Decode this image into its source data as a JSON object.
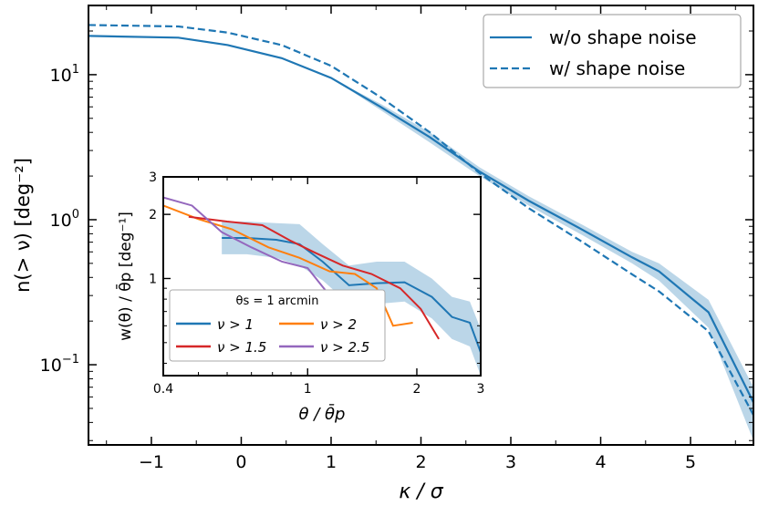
{
  "chart_data": [
    {
      "type": "line",
      "panel": "main",
      "xlabel": "κ / σ",
      "ylabel": "n(> ν) [deg⁻²]",
      "xlim": [
        -1.7,
        5.7
      ],
      "ylim": [
        0.028,
        30
      ],
      "yscale": "log",
      "xticks": [
        -1,
        0,
        1,
        2,
        3,
        4,
        5
      ],
      "xtick_labels": [
        "−1",
        "0",
        "1",
        "2",
        "3",
        "4",
        "5"
      ],
      "yticks": [
        {
          "value": 0.1,
          "base": "10",
          "exp": "−1"
        },
        {
          "value": 1,
          "base": "10",
          "exp": "0"
        },
        {
          "value": 10,
          "base": "10",
          "exp": "1"
        }
      ],
      "legend": {
        "position": "top-right",
        "entries": [
          "w/o shape noise",
          "w/ shape noise"
        ]
      },
      "series": [
        {
          "name": "w/o shape noise",
          "style": "solid",
          "color": "#1f77b4",
          "x": [
            -1.7,
            -0.7,
            -0.15,
            0.45,
            1.0,
            1.55,
            2.1,
            2.65,
            3.2,
            3.8,
            4.35,
            4.65,
            5.2,
            5.7
          ],
          "y": [
            18.5,
            18.0,
            16.0,
            13.0,
            9.5,
            6.0,
            3.7,
            2.15,
            1.35,
            0.85,
            0.55,
            0.44,
            0.23,
            0.055
          ],
          "band_lower": [
            18.5,
            18.0,
            16.0,
            13.0,
            9.5,
            5.7,
            3.4,
            2.0,
            1.25,
            0.78,
            0.5,
            0.38,
            0.18,
            0.03
          ],
          "band_upper": [
            18.5,
            18.0,
            16.0,
            13.0,
            9.5,
            6.3,
            4.0,
            2.3,
            1.45,
            0.92,
            0.6,
            0.5,
            0.28,
            0.07
          ]
        },
        {
          "name": "w/ shape noise",
          "style": "dashed",
          "color": "#1f77b4",
          "x": [
            -1.7,
            -0.7,
            -0.15,
            0.45,
            1.0,
            1.55,
            2.1,
            2.65,
            3.2,
            3.8,
            4.35,
            4.65,
            5.2,
            5.7
          ],
          "y": [
            22.0,
            21.5,
            19.5,
            16.0,
            11.5,
            7.0,
            4.0,
            2.1,
            1.2,
            0.7,
            0.42,
            0.32,
            0.17,
            0.045
          ]
        }
      ]
    },
    {
      "type": "line",
      "panel": "inset",
      "xlabel": "θ / θ̄p",
      "ylabel": "w(θ) / θ̄p [deg⁻¹]",
      "xscale": "log",
      "yscale": "log",
      "xlim": [
        0.4,
        3.0
      ],
      "ylim": [
        0.35,
        3.0
      ],
      "xticks": [
        0.4,
        1,
        2,
        3
      ],
      "xtick_labels": [
        "0.4",
        "1",
        "2",
        "3"
      ],
      "yticks": [
        1,
        2,
        3
      ],
      "ytick_labels": [
        "1",
        "2",
        "3"
      ],
      "legend": {
        "position": "bottom-left",
        "title": "θs = 1 arcmin",
        "entries": [
          "ν > 1",
          "ν > 2",
          "ν > 1.5",
          "ν > 2.5"
        ]
      },
      "series": [
        {
          "name": "ν > 1",
          "color": "#1f77b4",
          "x": [
            0.58,
            0.68,
            0.82,
            0.95,
            1.1,
            1.3,
            1.55,
            1.85,
            2.2,
            2.5,
            2.8,
            3.0
          ],
          "y": [
            1.55,
            1.55,
            1.52,
            1.45,
            1.2,
            0.93,
            0.95,
            0.96,
            0.82,
            0.66,
            0.62,
            0.45
          ],
          "band_lower": [
            1.3,
            1.3,
            1.25,
            1.15,
            0.98,
            0.76,
            0.76,
            0.78,
            0.65,
            0.52,
            0.48,
            0.35
          ],
          "band_upper": [
            1.85,
            1.85,
            1.82,
            1.8,
            1.45,
            1.15,
            1.2,
            1.2,
            1.0,
            0.82,
            0.78,
            0.58
          ]
        },
        {
          "name": "ν > 2",
          "color": "#ff7f0e",
          "x": [
            0.4,
            0.5,
            0.62,
            0.78,
            0.95,
            1.15,
            1.35,
            1.55,
            1.72,
            1.95
          ],
          "y": [
            2.2,
            1.9,
            1.7,
            1.4,
            1.25,
            1.08,
            1.05,
            0.9,
            0.6,
            0.62
          ]
        },
        {
          "name": "ν > 1.5",
          "color": "#d62728",
          "x": [
            0.47,
            0.6,
            0.75,
            0.9,
            1.05,
            1.25,
            1.5,
            1.8,
            2.05,
            2.3
          ],
          "y": [
            1.95,
            1.85,
            1.78,
            1.5,
            1.32,
            1.15,
            1.05,
            0.9,
            0.72,
            0.52
          ]
        },
        {
          "name": "ν > 2.5",
          "color": "#9467bd",
          "x": [
            0.4,
            0.48,
            0.58,
            0.7,
            0.85,
            1.0,
            1.12,
            1.25,
            1.4,
            1.58
          ],
          "y": [
            2.4,
            2.2,
            1.65,
            1.4,
            1.2,
            1.12,
            0.88,
            0.68,
            0.6,
            0.6
          ]
        }
      ]
    }
  ]
}
